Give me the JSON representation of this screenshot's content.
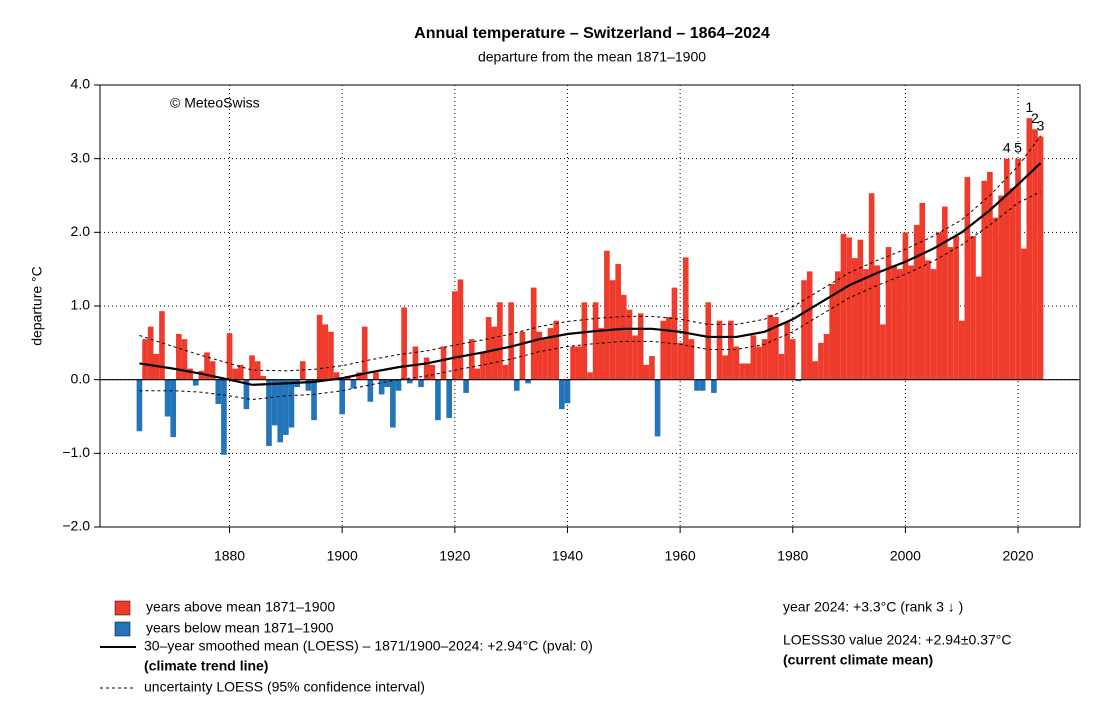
{
  "chart_data": {
    "type": "bar",
    "title": "Annual temperature – Switzerland – 1864–2024",
    "subtitle": "departure from the mean 1871–1900",
    "ylabel": "departure °C",
    "credit": "© MeteoSwiss",
    "xlim": [
      1857,
      2031
    ],
    "ylim": [
      -2,
      4
    ],
    "xticks": [
      1880,
      1900,
      1920,
      1940,
      1960,
      1980,
      2000,
      2020
    ],
    "yticks": [
      {
        "value": -2,
        "label": "−2.0"
      },
      {
        "value": -1,
        "label": "−1.0"
      },
      {
        "value": 0,
        "label": "0.0"
      },
      {
        "value": 1,
        "label": "1.0"
      },
      {
        "value": 2,
        "label": "2.0"
      },
      {
        "value": 3,
        "label": "3.0"
      },
      {
        "value": 4,
        "label": "4.0"
      }
    ],
    "grid": true,
    "above_color": "#ee3b2b",
    "below_color": "#2374b8",
    "x": [
      1864,
      1865,
      1866,
      1867,
      1868,
      1869,
      1870,
      1871,
      1872,
      1873,
      1874,
      1875,
      1876,
      1877,
      1878,
      1879,
      1880,
      1881,
      1882,
      1883,
      1884,
      1885,
      1886,
      1887,
      1888,
      1889,
      1890,
      1891,
      1892,
      1893,
      1894,
      1895,
      1896,
      1897,
      1898,
      1899,
      1900,
      1901,
      1902,
      1903,
      1904,
      1905,
      1906,
      1907,
      1908,
      1909,
      1910,
      1911,
      1912,
      1913,
      1914,
      1915,
      1916,
      1917,
      1918,
      1919,
      1920,
      1921,
      1922,
      1923,
      1924,
      1925,
      1926,
      1927,
      1928,
      1929,
      1930,
      1931,
      1932,
      1933,
      1934,
      1935,
      1936,
      1937,
      1938,
      1939,
      1940,
      1941,
      1942,
      1943,
      1944,
      1945,
      1946,
      1947,
      1948,
      1949,
      1950,
      1951,
      1952,
      1953,
      1954,
      1955,
      1956,
      1957,
      1958,
      1959,
      1960,
      1961,
      1962,
      1963,
      1964,
      1965,
      1966,
      1967,
      1968,
      1969,
      1970,
      1971,
      1972,
      1973,
      1974,
      1975,
      1976,
      1977,
      1978,
      1979,
      1980,
      1981,
      1982,
      1983,
      1984,
      1985,
      1986,
      1987,
      1988,
      1989,
      1990,
      1991,
      1992,
      1993,
      1994,
      1995,
      1996,
      1997,
      1998,
      1999,
      2000,
      2001,
      2002,
      2003,
      2004,
      2005,
      2006,
      2007,
      2008,
      2009,
      2010,
      2011,
      2012,
      2013,
      2014,
      2015,
      2016,
      2017,
      2018,
      2019,
      2020,
      2021,
      2022,
      2023,
      2024
    ],
    "values": [
      -0.7,
      0.55,
      0.72,
      0.35,
      0.93,
      -0.5,
      -0.78,
      0.62,
      0.55,
      0.15,
      -0.08,
      0.12,
      0.37,
      0.25,
      -0.33,
      -1.02,
      0.63,
      0.15,
      0.2,
      -0.4,
      0.33,
      0.25,
      0.05,
      -0.9,
      -0.62,
      -0.85,
      -0.75,
      -0.65,
      -0.1,
      0.25,
      -0.15,
      -0.55,
      0.88,
      0.75,
      0.65,
      0.1,
      -0.47,
      0.05,
      -0.12,
      0.1,
      0.72,
      -0.3,
      0.1,
      -0.2,
      -0.1,
      -0.65,
      -0.15,
      0.98,
      -0.05,
      0.45,
      -0.1,
      0.3,
      0.2,
      -0.55,
      0.45,
      -0.52,
      1.2,
      1.36,
      -0.18,
      0.55,
      0.15,
      0.38,
      0.85,
      0.72,
      1.05,
      0.2,
      1.05,
      -0.15,
      0.65,
      -0.05,
      1.25,
      0.65,
      0.55,
      0.7,
      0.8,
      -0.4,
      -0.32,
      0.45,
      0.45,
      1.05,
      0.1,
      1.05,
      0.7,
      1.75,
      1.35,
      1.57,
      1.15,
      0.95,
      0.6,
      0.9,
      0.2,
      0.32,
      -0.77,
      0.8,
      0.85,
      1.25,
      0.5,
      1.66,
      0.55,
      -0.15,
      -0.15,
      1.05,
      -0.18,
      0.8,
      0.33,
      0.8,
      0.45,
      0.22,
      0.22,
      0.6,
      0.45,
      0.55,
      0.88,
      0.85,
      0.35,
      0.78,
      0.55,
      -0.02,
      1.35,
      1.47,
      0.25,
      0.5,
      0.62,
      1.3,
      1.47,
      1.98,
      1.93,
      1.65,
      1.9,
      1.5,
      2.53,
      1.55,
      0.75,
      1.8,
      1.55,
      1.5,
      2.0,
      1.55,
      2.1,
      2.4,
      1.62,
      1.5,
      2.0,
      2.35,
      1.8,
      1.95,
      0.8,
      2.75,
      1.95,
      1.4,
      2.7,
      2.82,
      2.2,
      2.5,
      3.0,
      2.6,
      3.0,
      1.78,
      3.55,
      3.4,
      3.3
    ],
    "trend": {
      "x": [
        1864,
        1870,
        1875,
        1880,
        1884,
        1890,
        1895,
        1900,
        1905,
        1910,
        1915,
        1920,
        1925,
        1930,
        1935,
        1940,
        1945,
        1950,
        1955,
        1960,
        1965,
        1970,
        1975,
        1980,
        1985,
        1990,
        1995,
        2000,
        2005,
        2010,
        2015,
        2020,
        2024
      ],
      "values": [
        0.22,
        0.15,
        0.08,
        0.0,
        -0.07,
        -0.05,
        -0.03,
        0.02,
        0.1,
        0.17,
        0.22,
        0.3,
        0.37,
        0.45,
        0.55,
        0.62,
        0.66,
        0.69,
        0.69,
        0.65,
        0.58,
        0.58,
        0.65,
        0.82,
        1.05,
        1.28,
        1.45,
        1.6,
        1.78,
        2.0,
        2.3,
        2.65,
        2.94
      ],
      "upper": [
        0.6,
        0.45,
        0.33,
        0.22,
        0.13,
        0.12,
        0.14,
        0.19,
        0.27,
        0.34,
        0.39,
        0.47,
        0.54,
        0.62,
        0.72,
        0.79,
        0.83,
        0.86,
        0.86,
        0.82,
        0.75,
        0.75,
        0.82,
        0.99,
        1.22,
        1.45,
        1.62,
        1.77,
        1.95,
        2.17,
        2.5,
        2.9,
        3.31
      ],
      "lower": [
        -0.15,
        -0.15,
        -0.17,
        -0.22,
        -0.27,
        -0.22,
        -0.2,
        -0.15,
        -0.07,
        0.0,
        0.05,
        0.13,
        0.2,
        0.28,
        0.38,
        0.45,
        0.49,
        0.52,
        0.52,
        0.48,
        0.41,
        0.41,
        0.48,
        0.65,
        0.88,
        1.11,
        1.28,
        1.43,
        1.61,
        1.83,
        2.1,
        2.4,
        2.55
      ]
    },
    "rank_labels": [
      {
        "year": 2022,
        "label": "1"
      },
      {
        "year": 2023,
        "label": "2"
      },
      {
        "year": 2024,
        "label": "3"
      },
      {
        "year": 2018,
        "label": "4"
      },
      {
        "year": 2020,
        "label": "5"
      }
    ],
    "legend": {
      "above": "years above mean 1871–1900",
      "below": "years below mean 1871–1900",
      "trend": "30–year smoothed mean (LOESS) – 1871/1900–2024: +2.94°C (pval: 0)",
      "trend_note": "(climate trend line)",
      "uncertainty": "uncertainty LOESS (95% confidence interval)"
    },
    "notes": {
      "year": "year 2024: +3.3°C (rank 3 ↓ )",
      "loess": "LOESS30 value 2024: +2.94±0.37°C",
      "loess_note": "(current climate mean)"
    }
  }
}
